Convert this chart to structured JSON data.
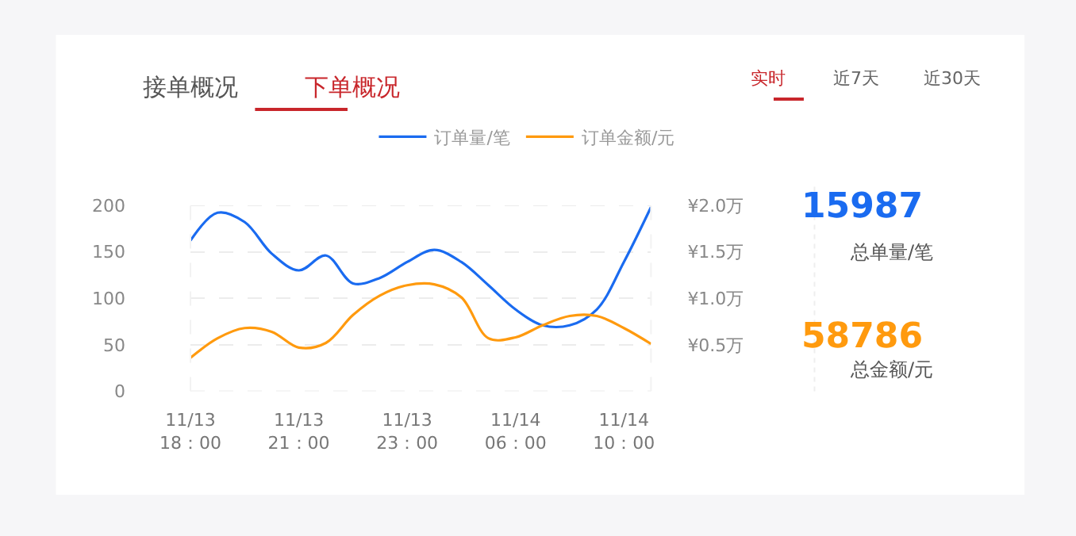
{
  "chart_data": [
    {
      "type": "line",
      "categories": [
        "11/13\n18：00",
        null,
        null,
        null,
        "11/13\n21：00",
        null,
        null,
        null,
        "11/13\n23：00",
        null,
        null,
        null,
        "11/14\n06：00",
        null,
        null,
        null,
        "11/14\n10：00",
        null
      ],
      "series": [
        {
          "name": "订单量/笔",
          "color": "#1a6bf0",
          "values": [
            162,
            192,
            182,
            148,
            130,
            146,
            116,
            122,
            139,
            152,
            139,
            114,
            88,
            71,
            71,
            88,
            139,
            198
          ]
        },
        {
          "name": "订单金额/元",
          "color": "#ff9a0e",
          "axis": "y2",
          "values": [
            0.36,
            0.57,
            0.68,
            0.64,
            0.47,
            0.52,
            0.82,
            1.03,
            1.14,
            1.15,
            1.01,
            0.57,
            0.58,
            0.71,
            0.81,
            0.81,
            0.68,
            0.51
          ]
        }
      ],
      "ylim": [
        0,
        200
      ],
      "yticks": [
        0,
        50,
        100,
        150,
        200
      ],
      "y2lim": [
        0,
        2.0
      ],
      "y2ticks": [
        {
          "value": 0.5,
          "label": "¥0.5万"
        },
        {
          "value": 1.0,
          "label": "¥1.0万"
        },
        {
          "value": 1.5,
          "label": "¥1.5万"
        },
        {
          "value": 2.0,
          "label": "¥2.0万"
        }
      ],
      "grid": "y",
      "legend": "top",
      "marker": "none",
      "line_style": "solid",
      "annotations": [
        "接单概况",
        "下单概况",
        "实时",
        "近7天",
        "近30天"
      ]
    },
    {
      "type": "other",
      "annotations": [
        "15987",
        "总单量/笔",
        "58786",
        "总金额/元"
      ]
    }
  ]
}
